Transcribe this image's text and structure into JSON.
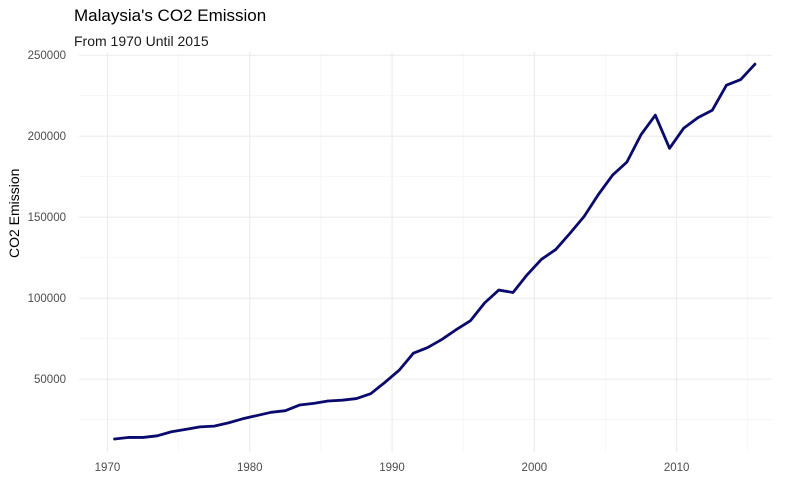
{
  "chart_data": {
    "type": "line",
    "title": "Malaysia's CO2 Emission",
    "subtitle": "From 1970 Until 2015",
    "xlabel": "",
    "ylabel": "CO2 Emission",
    "xlim": [
      1968.0,
      2016.7
    ],
    "ylim": [
      5000,
      252000
    ],
    "x_ticks": [
      1970,
      1980,
      1990,
      2000,
      2010
    ],
    "x_tick_labels": [
      "1970",
      "1980",
      "1990",
      "2000",
      "2010"
    ],
    "y_ticks": [
      50000,
      100000,
      150000,
      200000,
      250000
    ],
    "y_tick_labels": [
      "50000",
      "100000",
      "150000",
      "200000",
      "250000"
    ],
    "grid": true,
    "line_color": "#0a0a6e",
    "series": [
      {
        "x": [
          1970.5,
          1971.5,
          1972.5,
          1973.5,
          1974.5,
          1975.5,
          1976.5,
          1977.5,
          1978.5,
          1979.5,
          1980.5,
          1981.5,
          1982.5,
          1983.5,
          1984.5,
          1985.5,
          1986.5,
          1987.5,
          1988.5,
          1989.5,
          1990.5,
          1991.5,
          1992.5,
          1993.5,
          1994.5,
          1995.5,
          1996.5,
          1997.5,
          1998.5,
          1999.5,
          2000.5,
          2001.5,
          2002.5,
          2003.5,
          2004.5,
          2005.5,
          2006.5,
          2007.5,
          2008.5,
          2009.5,
          2010.5,
          2011.5,
          2012.5,
          2013.5,
          2014.5,
          2015.5
        ],
        "values": [
          13000,
          14000,
          14000,
          15000,
          17500,
          19000,
          20500,
          21000,
          23000,
          25500,
          27500,
          29500,
          30500,
          34000,
          35000,
          36500,
          37000,
          38000,
          41000,
          48000,
          55500,
          66000,
          69500,
          74500,
          80500,
          86000,
          97000,
          105000,
          103500,
          114500,
          124000,
          130000,
          140000,
          150500,
          164000,
          176000,
          184000,
          201000,
          213000,
          192500,
          205000,
          211500,
          216000,
          231500,
          235000,
          244500
        ]
      }
    ]
  }
}
